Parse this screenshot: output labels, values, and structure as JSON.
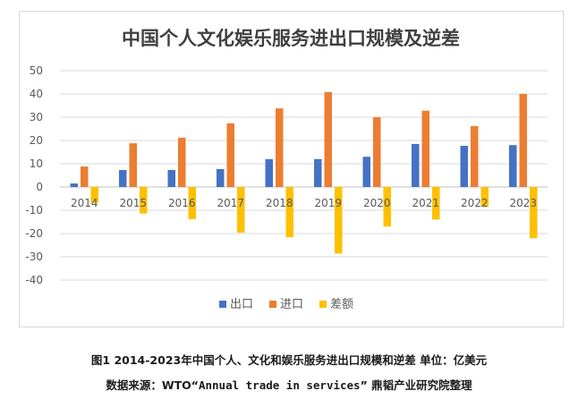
{
  "caption": {
    "line1": "图1 2014-2023年中国个人、文化和娱乐服务进出口规模和逆差 单位：亿美元",
    "line2_prefix": "数据来源：WTO“",
    "line2_source": "Annual trade in services",
    "line2_suffix": "” 鼎韬产业研究院整理"
  },
  "chart_data": {
    "type": "bar",
    "title": "中国个人文化娱乐服务进出口规模及逆差",
    "xlabel": "",
    "ylabel": "",
    "categories": [
      "2014",
      "2015",
      "2016",
      "2017",
      "2018",
      "2019",
      "2020",
      "2021",
      "2022",
      "2023"
    ],
    "series": [
      {
        "name": "出口",
        "color": "#4472C4",
        "values": [
          1.5,
          7.3,
          7.3,
          7.7,
          12,
          12,
          13,
          18.5,
          17.7,
          18
        ]
      },
      {
        "name": "进口",
        "color": "#ED7D31",
        "values": [
          8.8,
          18.8,
          21.2,
          27.4,
          33.8,
          40.8,
          30,
          32.8,
          26.2,
          40
        ]
      },
      {
        "name": "差额",
        "color": "#FFC000",
        "values": [
          -6.8,
          -11.4,
          -13.8,
          -19.6,
          -21.6,
          -28.6,
          -17,
          -14,
          -8.5,
          -22
        ]
      }
    ],
    "ylim": [
      -40,
      50
    ],
    "yticks": [
      50,
      40,
      30,
      20,
      10,
      0,
      -10,
      -20,
      -30,
      -40
    ],
    "grid": true,
    "legend": "bottom"
  }
}
